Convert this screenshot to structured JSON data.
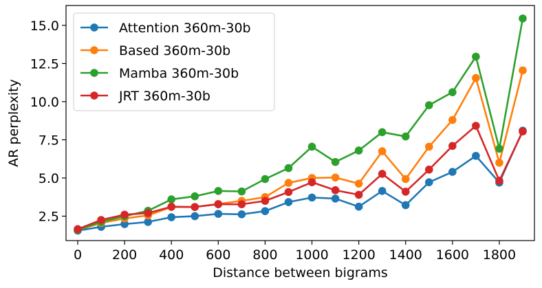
{
  "chart_data": {
    "type": "line",
    "xlabel": "Distance between bigrams",
    "ylabel": "AR perplexity",
    "xlim": [
      -50,
      1950
    ],
    "ylim": [
      0.9,
      16.3
    ],
    "xticks": [
      0,
      200,
      400,
      600,
      800,
      1000,
      1200,
      1400,
      1600,
      1800
    ],
    "xtick_labels": [
      "0",
      "200",
      "400",
      "600",
      "800",
      "1000",
      "1200",
      "1400",
      "1600",
      "1800"
    ],
    "yticks": [
      2.5,
      5.0,
      7.5,
      10.0,
      12.5,
      15.0
    ],
    "ytick_labels": [
      "2.5",
      "5.0",
      "7.5",
      "10.0",
      "12.5",
      "15.0"
    ],
    "grid": false,
    "legend_position": "top-left",
    "x": [
      0,
      100,
      200,
      300,
      400,
      500,
      600,
      700,
      800,
      900,
      1000,
      1100,
      1200,
      1300,
      1400,
      1500,
      1600,
      1700,
      1800,
      1900
    ],
    "series": [
      {
        "name": "Attention 360m-30b",
        "color": "#1f77b4",
        "values": [
          1.55,
          1.8,
          1.98,
          2.12,
          2.43,
          2.5,
          2.65,
          2.62,
          2.83,
          3.42,
          3.72,
          3.65,
          3.12,
          4.15,
          3.22,
          4.72,
          5.4,
          6.45,
          4.7,
          8.1
        ]
      },
      {
        "name": "Based 360m-30b",
        "color": "#ff7f0e",
        "values": [
          1.6,
          2.05,
          2.35,
          2.55,
          3.1,
          3.1,
          3.3,
          3.5,
          3.75,
          4.68,
          5.0,
          5.03,
          4.63,
          6.75,
          4.93,
          7.05,
          8.8,
          11.55,
          6.0,
          12.05
        ]
      },
      {
        "name": "Mamba 360m-30b",
        "color": "#2ca02c",
        "values": [
          1.6,
          2.12,
          2.5,
          2.85,
          3.6,
          3.8,
          4.15,
          4.12,
          4.93,
          5.65,
          7.05,
          6.05,
          6.8,
          8.0,
          7.72,
          9.77,
          10.62,
          12.95,
          6.92,
          15.45
        ]
      },
      {
        "name": "JRT 360m-30b",
        "color": "#d62728",
        "values": [
          1.65,
          2.25,
          2.6,
          2.7,
          3.12,
          3.1,
          3.28,
          3.28,
          3.5,
          4.08,
          4.72,
          4.2,
          3.9,
          5.27,
          4.1,
          5.55,
          7.1,
          8.42,
          4.82,
          8.05
        ]
      }
    ]
  }
}
